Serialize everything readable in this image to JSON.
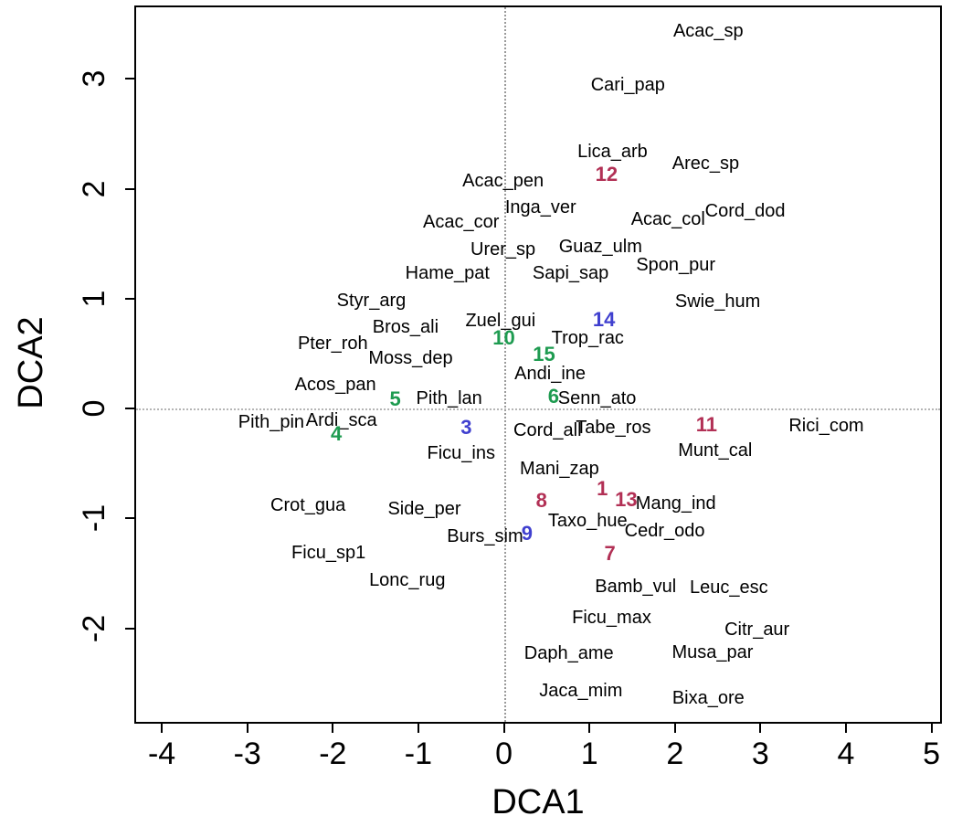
{
  "chart_data": {
    "type": "scatter",
    "title": "",
    "xlabel": "DCA1",
    "ylabel": "DCA2",
    "xlim": [
      -4.3,
      5.1
    ],
    "ylim": [
      -2.85,
      3.65
    ],
    "x_ticks": [
      -4,
      -3,
      -2,
      -1,
      0,
      1,
      2,
      3,
      4,
      5
    ],
    "y_ticks": [
      -2,
      -1,
      0,
      1,
      2,
      3
    ],
    "grid": "dotted zero lines at x=0 and y=0",
    "legend": "none",
    "palette": {
      "species": "#000000",
      "green": "#1e9b50",
      "blue": "#4040cf",
      "red": "#b23055",
      "zero_line": "#9a9a9a",
      "frame": "#000000"
    },
    "series": [
      {
        "name": "species-labels",
        "color_key": "species",
        "bold": false,
        "points": [
          {
            "label": "Acac_sp",
            "x": 2.39,
            "y": 3.43
          },
          {
            "label": "Cari_pap",
            "x": 1.45,
            "y": 2.94
          },
          {
            "label": "Lica_arb",
            "x": 1.27,
            "y": 2.34
          },
          {
            "label": "Arec_sp",
            "x": 2.36,
            "y": 2.23
          },
          {
            "label": "Acac_pen",
            "x": -0.01,
            "y": 2.07
          },
          {
            "label": "Inga_ver",
            "x": 0.43,
            "y": 1.83
          },
          {
            "label": "Acac_col",
            "x": 1.92,
            "y": 1.72
          },
          {
            "label": "Cord_dod",
            "x": 2.82,
            "y": 1.8
          },
          {
            "label": "Acac_cor",
            "x": -0.5,
            "y": 1.7
          },
          {
            "label": "Urer_sp",
            "x": -0.01,
            "y": 1.45
          },
          {
            "label": "Guaz_ulm",
            "x": 1.13,
            "y": 1.47
          },
          {
            "label": "Spon_pur",
            "x": 2.01,
            "y": 1.31
          },
          {
            "label": "Hame_pat",
            "x": -0.66,
            "y": 1.23
          },
          {
            "label": "Sapi_sap",
            "x": 0.78,
            "y": 1.23
          },
          {
            "label": "Swie_hum",
            "x": 2.5,
            "y": 0.97
          },
          {
            "label": "Styr_arg",
            "x": -1.55,
            "y": 0.98
          },
          {
            "label": "Bros_ali",
            "x": -1.15,
            "y": 0.74
          },
          {
            "label": "Zuel_gui",
            "x": -0.04,
            "y": 0.8
          },
          {
            "label": "Trop_rac",
            "x": 0.98,
            "y": 0.64
          },
          {
            "label": "Pter_roh",
            "x": -2.0,
            "y": 0.59
          },
          {
            "label": "Moss_dep",
            "x": -1.09,
            "y": 0.46
          },
          {
            "label": "Andi_ine",
            "x": 0.54,
            "y": 0.32
          },
          {
            "label": "Acos_pan",
            "x": -1.97,
            "y": 0.22
          },
          {
            "label": "Senn_ato",
            "x": 1.09,
            "y": 0.09
          },
          {
            "label": "Pith_lan",
            "x": -0.64,
            "y": 0.09
          },
          {
            "label": "Pith_pin",
            "x": -2.72,
            "y": -0.12
          },
          {
            "label": "Ardi_sca",
            "x": -1.9,
            "y": -0.11
          },
          {
            "label": "Cord_all",
            "x": 0.51,
            "y": -0.2
          },
          {
            "label": "Tabe_ros",
            "x": 1.28,
            "y": -0.17
          },
          {
            "label": "Rici_com",
            "x": 3.77,
            "y": -0.16
          },
          {
            "label": "Munt_cal",
            "x": 2.47,
            "y": -0.38
          },
          {
            "label": "Ficu_ins",
            "x": -0.5,
            "y": -0.41
          },
          {
            "label": "Mani_zap",
            "x": 0.65,
            "y": -0.55
          },
          {
            "label": "Mang_ind",
            "x": 2.01,
            "y": -0.86
          },
          {
            "label": "Crot_gua",
            "x": -2.29,
            "y": -0.88
          },
          {
            "label": "Side_per",
            "x": -0.93,
            "y": -0.91
          },
          {
            "label": "Taxo_hue",
            "x": 0.98,
            "y": -1.02
          },
          {
            "label": "Cedr_odo",
            "x": 1.88,
            "y": -1.11
          },
          {
            "label": "Burs_sim",
            "x": -0.22,
            "y": -1.16
          },
          {
            "label": "Ficu_sp1",
            "x": -2.05,
            "y": -1.31
          },
          {
            "label": "Lonc_rug",
            "x": -1.13,
            "y": -1.56
          },
          {
            "label": "Bamb_vul",
            "x": 1.54,
            "y": -1.62
          },
          {
            "label": "Leuc_esc",
            "x": 2.63,
            "y": -1.63
          },
          {
            "label": "Ficu_max",
            "x": 1.26,
            "y": -1.9
          },
          {
            "label": "Citr_aur",
            "x": 2.96,
            "y": -2.01
          },
          {
            "label": "Daph_ame",
            "x": 0.76,
            "y": -2.23
          },
          {
            "label": "Musa_par",
            "x": 2.44,
            "y": -2.22
          },
          {
            "label": "Jaca_mim",
            "x": 0.9,
            "y": -2.57
          },
          {
            "label": "Bixa_ore",
            "x": 2.39,
            "y": -2.63
          }
        ]
      },
      {
        "name": "clusters-green",
        "color_key": "green",
        "bold": true,
        "points": [
          {
            "label": "4",
            "x": -1.96,
            "y": -0.23
          },
          {
            "label": "5",
            "x": -1.27,
            "y": 0.08
          },
          {
            "label": "6",
            "x": 0.58,
            "y": 0.11
          },
          {
            "label": "10",
            "x": 0.0,
            "y": 0.64
          },
          {
            "label": "15",
            "x": 0.47,
            "y": 0.49
          }
        ]
      },
      {
        "name": "clusters-blue",
        "color_key": "blue",
        "bold": true,
        "points": [
          {
            "label": "3",
            "x": -0.44,
            "y": -0.17
          },
          {
            "label": "9",
            "x": 0.27,
            "y": -1.14
          },
          {
            "label": "14",
            "x": 1.17,
            "y": 0.81
          }
        ]
      },
      {
        "name": "clusters-red",
        "color_key": "red",
        "bold": true,
        "points": [
          {
            "label": "1",
            "x": 1.15,
            "y": -0.73
          },
          {
            "label": "7",
            "x": 1.24,
            "y": -1.32
          },
          {
            "label": "8",
            "x": 0.44,
            "y": -0.84
          },
          {
            "label": "11",
            "x": 2.37,
            "y": -0.15
          },
          {
            "label": "12",
            "x": 1.2,
            "y": 2.13
          },
          {
            "label": "13",
            "x": 1.43,
            "y": -0.83
          }
        ]
      }
    ]
  }
}
